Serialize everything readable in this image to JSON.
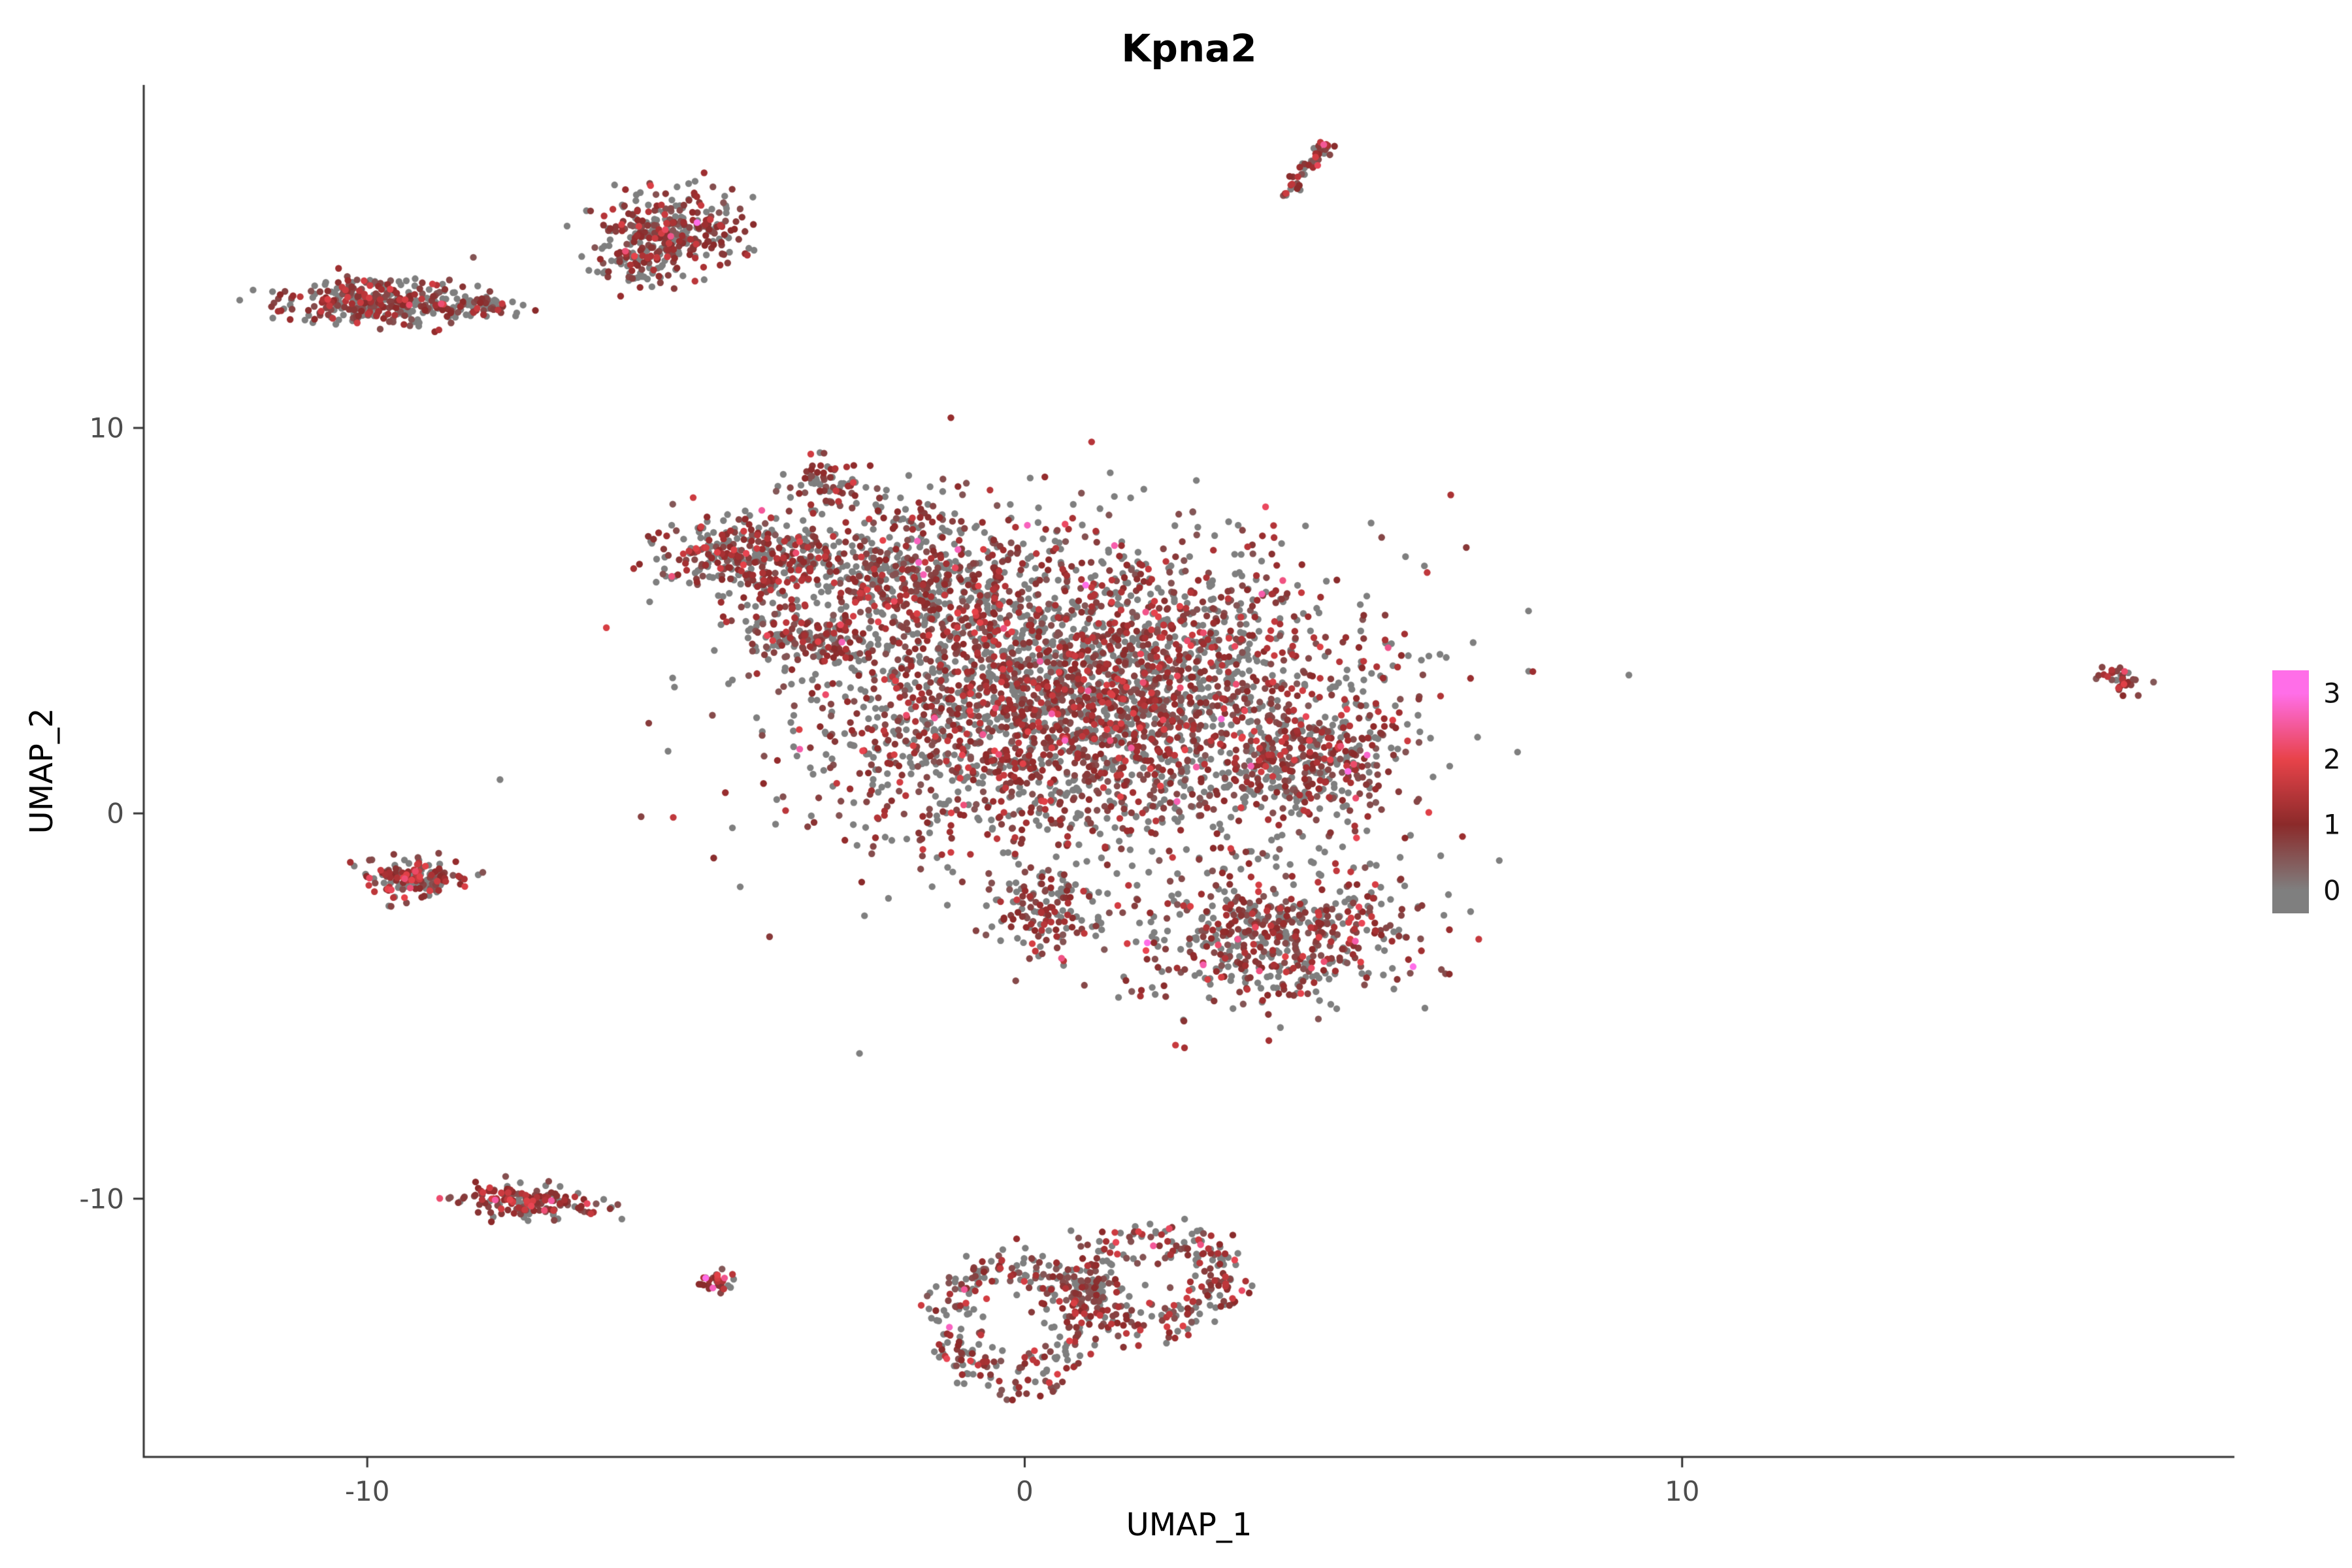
{
  "chart_data": {
    "type": "scatter",
    "title": "Kpna2",
    "xlabel": "UMAP_1",
    "ylabel": "UMAP_2",
    "x_ticks": [
      -10,
      0,
      10
    ],
    "y_ticks": [
      -10,
      0,
      10
    ],
    "x_range": [
      -13.4,
      18.4
    ],
    "y_range": [
      -16.7,
      18.9
    ],
    "grid": false,
    "point_radius_px": 5.2,
    "seed": 42,
    "legend": {
      "position": "right",
      "tick_labels": [
        "3",
        "2",
        "1",
        "0"
      ],
      "tick_values": [
        3,
        2,
        1,
        0
      ],
      "bar_value_range": [
        -0.35,
        3.35
      ],
      "stops": [
        {
          "value": 0,
          "color": "#7f7f7f"
        },
        {
          "value": 1,
          "color": "#8b2a2a"
        },
        {
          "value": 2,
          "color": "#e8434a"
        },
        {
          "value": 3,
          "color": "#ff6ee8"
        }
      ]
    },
    "clusters": [
      {
        "name": "island-top-left",
        "shape": "gauss",
        "cx": -9.8,
        "cy": 13.25,
        "sx": 0.72,
        "sy": 0.3,
        "rot": -0.08,
        "n": 330,
        "gray_frac": 0.48,
        "expr_scale": 0.5
      },
      {
        "name": "island-top-left-tail",
        "shape": "gauss",
        "cx": -8.3,
        "cy": 13.15,
        "sx": 0.4,
        "sy": 0.15,
        "rot": 0,
        "n": 55,
        "gray_frac": 0.5,
        "expr_scale": 0.45
      },
      {
        "name": "island-top-mid",
        "shape": "gauss",
        "cx": -5.35,
        "cy": 15.15,
        "sx": 0.5,
        "sy": 0.55,
        "rot": 0.55,
        "n": 300,
        "gray_frac": 0.42,
        "expr_scale": 0.55
      },
      {
        "name": "island-top-mid-tail",
        "shape": "gauss",
        "cx": -5.95,
        "cy": 14.2,
        "sx": 0.3,
        "sy": 0.35,
        "rot": 0.4,
        "n": 70,
        "gray_frac": 0.5,
        "expr_scale": 0.45
      },
      {
        "name": "streak-top",
        "shape": "streak",
        "cx": 4.3,
        "cy": 16.75,
        "len": 1.5,
        "angle": 1.15,
        "w": 0.07,
        "n": 50,
        "gray_frac": 0.3,
        "expr_scale": 0.55
      },
      {
        "name": "main-left-arm",
        "shape": "gauss",
        "cx": -4.1,
        "cy": 6.6,
        "sx": 0.75,
        "sy": 0.5,
        "rot": -0.25,
        "n": 360,
        "gray_frac": 0.45,
        "expr_scale": 0.5
      },
      {
        "name": "main-top-spur",
        "shape": "gauss",
        "cx": -3.0,
        "cy": 8.5,
        "sx": 0.3,
        "sy": 0.35,
        "rot": 0,
        "n": 70,
        "gray_frac": 0.45,
        "expr_scale": 0.5
      },
      {
        "name": "main-small-arm",
        "shape": "gauss",
        "cx": -3.35,
        "cy": 4.6,
        "sx": 0.55,
        "sy": 0.28,
        "rot": -0.45,
        "n": 140,
        "gray_frac": 0.45,
        "expr_scale": 0.5
      },
      {
        "name": "main-upper",
        "shape": "gauss",
        "cx": -1.6,
        "cy": 6.3,
        "sx": 0.95,
        "sy": 1.0,
        "rot": -0.2,
        "n": 480,
        "gray_frac": 0.45,
        "expr_scale": 0.5
      },
      {
        "name": "main-bulk",
        "shape": "gauss",
        "cx": 1.0,
        "cy": 3.0,
        "sx": 2.05,
        "sy": 1.95,
        "rot": -0.32,
        "n": 3100,
        "gray_frac": 0.45,
        "expr_scale": 0.52
      },
      {
        "name": "main-right-edge",
        "shape": "gauss",
        "cx": 4.4,
        "cy": 1.3,
        "sx": 0.6,
        "sy": 0.8,
        "rot": -0.3,
        "n": 280,
        "gray_frac": 0.42,
        "expr_scale": 0.52
      },
      {
        "name": "main-lower-lobe",
        "shape": "gauss",
        "cx": 3.9,
        "cy": -3.2,
        "sx": 1.05,
        "sy": 0.85,
        "rot": 0.35,
        "n": 560,
        "gray_frac": 0.42,
        "expr_scale": 0.55
      },
      {
        "name": "main-lower-arm",
        "shape": "gauss",
        "cx": 0.35,
        "cy": -2.5,
        "sx": 0.4,
        "sy": 0.6,
        "rot": 0.2,
        "n": 130,
        "gray_frac": 0.45,
        "expr_scale": 0.5
      },
      {
        "name": "main-halo",
        "shape": "gauss",
        "cx": 0.5,
        "cy": 2.0,
        "sx": 3.1,
        "sy": 2.6,
        "rot": -0.32,
        "n": 140,
        "gray_frac": 0.5,
        "expr_scale": 0.5
      },
      {
        "name": "island-left",
        "shape": "gauss",
        "cx": -9.3,
        "cy": -1.65,
        "sx": 0.42,
        "sy": 0.26,
        "rot": -0.1,
        "n": 150,
        "gray_frac": 0.35,
        "expr_scale": 0.75
      },
      {
        "name": "island-bottom-left",
        "shape": "gauss",
        "cx": -7.6,
        "cy": -10.05,
        "sx": 0.55,
        "sy": 0.22,
        "rot": -0.1,
        "n": 170,
        "gray_frac": 0.32,
        "expr_scale": 0.6
      },
      {
        "name": "island-tiny",
        "shape": "gauss",
        "cx": -4.65,
        "cy": -12.15,
        "sx": 0.16,
        "sy": 0.14,
        "rot": 0,
        "n": 32,
        "gray_frac": 0.2,
        "expr_scale": 0.7
      },
      {
        "name": "bottom-ring-left",
        "shape": "ring",
        "cx": -0.15,
        "cy": -13.2,
        "rx": 1.0,
        "ry": 1.55,
        "w": 0.22,
        "n": 270,
        "gray_frac": 0.4,
        "expr_scale": 0.55
      },
      {
        "name": "bottom-ring-right",
        "shape": "ring",
        "cx": 1.95,
        "cy": -12.1,
        "rx": 1.05,
        "ry": 1.15,
        "w": 0.25,
        "n": 250,
        "gray_frac": 0.4,
        "expr_scale": 0.55
      },
      {
        "name": "bottom-bridge",
        "shape": "gauss",
        "cx": 0.9,
        "cy": -12.4,
        "sx": 0.45,
        "sy": 0.3,
        "rot": 0.3,
        "n": 70,
        "gray_frac": 0.4,
        "expr_scale": 0.5
      },
      {
        "name": "island-far-right",
        "shape": "gauss",
        "cx": 16.6,
        "cy": 3.5,
        "sx": 0.2,
        "sy": 0.12,
        "rot": -0.5,
        "n": 36,
        "gray_frac": 0.25,
        "expr_scale": 0.6
      }
    ]
  }
}
